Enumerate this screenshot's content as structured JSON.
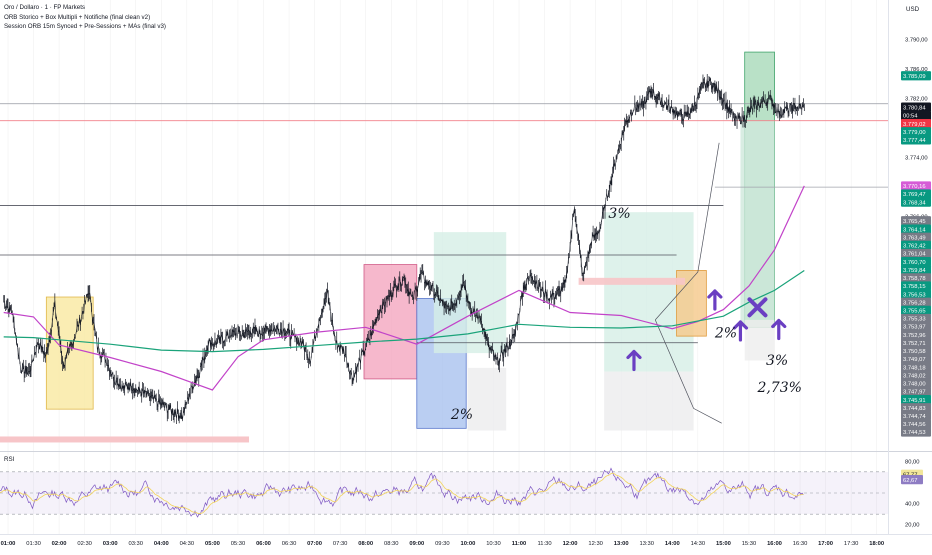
{
  "header": {
    "symbol_title": "Oro / Dollaro · 1 · FP Markets",
    "indicator_1": "ORB Storico + Box Multipli + Notifiche (final clean v2)",
    "indicator_2": "Session ORB 15m Synced + Pre-Sessions + MAs (final v3)",
    "currency": "USD"
  },
  "rsi": {
    "label": "RSI",
    "scale": [
      "80,00",
      "40,00",
      "20,00"
    ],
    "levels": [
      70,
      50,
      30
    ],
    "tags": [
      {
        "text": "67,77",
        "color": "#f2e69a",
        "fg": "#131722",
        "value": 67.77
      },
      {
        "text": "62,67",
        "color": "#8e7cc3",
        "fg": "#ffffff",
        "value": 62.67
      }
    ]
  },
  "price_scale": [
    "3.790,00",
    "3.786,00",
    "3.782,00",
    "3.774,00",
    "3.766,00"
  ],
  "price_tags": [
    {
      "text": "3.785,09",
      "color": "#089981",
      "fg": "#ffffff",
      "price": 3785.09
    },
    {
      "text": "3.780,84",
      "color": "#131722",
      "fg": "#ffffff",
      "price": 3780.84
    },
    {
      "text": "00:54",
      "color": "#131722",
      "fg": "#ffffff",
      "price": 3779.7
    },
    {
      "text": "3.779,02",
      "color": "#f23645",
      "fg": "#ffffff",
      "price": 3778.6
    },
    {
      "text": "3.779,00",
      "color": "#089981",
      "fg": "#ffffff",
      "price": 3777.5
    },
    {
      "text": "3.777,44",
      "color": "#089981",
      "fg": "#ffffff",
      "price": 3776.4
    },
    {
      "text": "3.770,16",
      "color": "#d65cd6",
      "fg": "#ffffff",
      "price": 3770.16
    },
    {
      "text": "3.769,47",
      "color": "#089981",
      "fg": "#ffffff",
      "price": 3769.06
    },
    {
      "text": "3.768,34",
      "color": "#089981",
      "fg": "#ffffff",
      "price": 3767.96
    },
    {
      "text": "3.765,45",
      "color": "#787b86",
      "fg": "#ffffff",
      "price": 3765.45
    },
    {
      "text": "3.764,14",
      "color": "#089981",
      "fg": "#ffffff",
      "price": 3764.3
    },
    {
      "text": "3.763,49",
      "color": "#787b86",
      "fg": "#ffffff",
      "price": 3763.2
    },
    {
      "text": "3.762,42",
      "color": "#089981",
      "fg": "#ffffff",
      "price": 3762.1
    },
    {
      "text": "3.761,04",
      "color": "#787b86",
      "fg": "#ffffff",
      "price": 3761.0
    },
    {
      "text": "3.760,70",
      "color": "#089981",
      "fg": "#ffffff",
      "price": 3759.9
    },
    {
      "text": "3.759,84",
      "color": "#089981",
      "fg": "#ffffff",
      "price": 3758.8
    },
    {
      "text": "3.758,78",
      "color": "#787b86",
      "fg": "#ffffff",
      "price": 3757.7
    },
    {
      "text": "3.758,15",
      "color": "#089981",
      "fg": "#ffffff",
      "price": 3756.6
    },
    {
      "text": "3.756,53",
      "color": "#089981",
      "fg": "#ffffff",
      "price": 3755.5
    },
    {
      "text": "3.756,28",
      "color": "#787b86",
      "fg": "#ffffff",
      "price": 3754.4
    },
    {
      "text": "3.755,65",
      "color": "#089981",
      "fg": "#ffffff",
      "price": 3753.3
    },
    {
      "text": "3.755,33",
      "color": "#787b86",
      "fg": "#ffffff",
      "price": 3752.2
    },
    {
      "text": "3.753,97",
      "color": "#787b86",
      "fg": "#ffffff",
      "price": 3751.1
    },
    {
      "text": "3.752,96",
      "color": "#787b86",
      "fg": "#ffffff",
      "price": 3750.0
    },
    {
      "text": "3.752,71",
      "color": "#787b86",
      "fg": "#ffffff",
      "price": 3748.9
    },
    {
      "text": "3.750,58",
      "color": "#787b86",
      "fg": "#ffffff",
      "price": 3747.8
    },
    {
      "text": "3.749,07",
      "color": "#787b86",
      "fg": "#ffffff",
      "price": 3746.7
    },
    {
      "text": "3.748,18",
      "color": "#787b86",
      "fg": "#ffffff",
      "price": 3745.6
    },
    {
      "text": "3.748,02",
      "color": "#787b86",
      "fg": "#ffffff",
      "price": 3744.5
    },
    {
      "text": "3.748,00",
      "color": "#787b86",
      "fg": "#ffffff",
      "price": 3743.4
    },
    {
      "text": "3.747,97",
      "color": "#787b86",
      "fg": "#ffffff",
      "price": 3742.3
    },
    {
      "text": "3.745,91",
      "color": "#089981",
      "fg": "#ffffff",
      "price": 3741.2
    },
    {
      "text": "3.744,83",
      "color": "#787b86",
      "fg": "#ffffff",
      "price": 3740.1
    },
    {
      "text": "3.744,74",
      "color": "#787b86",
      "fg": "#ffffff",
      "price": 3739.0
    },
    {
      "text": "3.744,56",
      "color": "#787b86",
      "fg": "#ffffff",
      "price": 3737.9
    },
    {
      "text": "3.744,53",
      "color": "#787b86",
      "fg": "#ffffff",
      "price": 3736.8
    }
  ],
  "time_axis": [
    "01:00",
    "01:30",
    "02:00",
    "02:30",
    "03:00",
    "03:30",
    "04:00",
    "04:30",
    "05:00",
    "05:30",
    "06:00",
    "06:30",
    "07:00",
    "07:30",
    "08:00",
    "08:30",
    "09:00",
    "09:30",
    "10:00",
    "10:30",
    "11:00",
    "11:30",
    "12:00",
    "12:30",
    "13:00",
    "13:30",
    "14:00",
    "14:30",
    "15:00",
    "15:30",
    "16:00",
    "16:30",
    "17:00",
    "17:30",
    "18:00"
  ],
  "time_axis_bold": [
    "01:00",
    "02:00",
    "03:00",
    "04:00",
    "05:00",
    "06:00",
    "07:00",
    "08:00",
    "09:00",
    "10:00",
    "11:00",
    "12:00",
    "13:00",
    "14:00",
    "15:00",
    "16:00",
    "17:00",
    "18:00"
  ],
  "annotations": [
    {
      "text": "3%",
      "x": "12:45",
      "y": 3765.8
    },
    {
      "text": "2%",
      "x": "09:40",
      "y": 3738.6
    },
    {
      "text": "2%",
      "x": "14:50",
      "y": 3749.6
    },
    {
      "text": "3%",
      "x": "15:50",
      "y": 3745.9
    },
    {
      "text": "2,73%",
      "x": "15:40",
      "y": 3742.2
    }
  ],
  "markers": [
    {
      "type": "arrow-up",
      "x": "13:15",
      "y": 3746.5
    },
    {
      "type": "arrow-up",
      "x": "14:50",
      "y": 3754.7
    },
    {
      "type": "arrow-up",
      "x": "15:20",
      "y": 3750.5
    },
    {
      "type": "arrow-up",
      "x": "16:05",
      "y": 3750.7
    },
    {
      "type": "cross",
      "x": "15:40",
      "y": 3753.7
    }
  ],
  "colors": {
    "candles": "#131722",
    "ma_fast": "#c243c9",
    "ma_slow": "#1aa37a",
    "marker": "#6a3fc2",
    "grid": "#eeeeee"
  },
  "chart_data": {
    "type": "line",
    "title": "Oro / Dollaro · 1 · FP Markets",
    "xlabel": "",
    "ylabel": "USD",
    "ylim": [
      3734.5,
      3791.7
    ],
    "x_range": [
      "00:52",
      "18:05"
    ],
    "price_series": {
      "x": [
        "00:55",
        "01:05",
        "01:15",
        "01:25",
        "01:35",
        "01:45",
        "01:55",
        "02:05",
        "02:15",
        "02:25",
        "02:35",
        "02:45",
        "02:55",
        "03:05",
        "03:15",
        "03:25",
        "03:35",
        "03:45",
        "03:55",
        "04:05",
        "04:15",
        "04:25",
        "04:35",
        "04:45",
        "04:55",
        "05:05",
        "05:15",
        "05:25",
        "05:35",
        "05:45",
        "05:55",
        "06:05",
        "06:15",
        "06:25",
        "06:35",
        "06:45",
        "06:55",
        "07:05",
        "07:15",
        "07:25",
        "07:35",
        "07:45",
        "07:55",
        "08:05",
        "08:15",
        "08:25",
        "08:35",
        "08:45",
        "08:55",
        "09:05",
        "09:15",
        "09:25",
        "09:35",
        "09:45",
        "09:55",
        "10:05",
        "10:15",
        "10:25",
        "10:35",
        "10:45",
        "10:55",
        "11:05",
        "11:15",
        "11:25",
        "11:35",
        "11:45",
        "11:55",
        "12:05",
        "12:15",
        "12:25",
        "12:35",
        "12:45",
        "12:55",
        "13:05",
        "13:15",
        "13:25",
        "13:35",
        "13:45",
        "13:55",
        "14:05",
        "14:15",
        "14:25",
        "14:35",
        "14:45",
        "14:55",
        "15:05",
        "15:15",
        "15:25",
        "15:35",
        "15:45",
        "15:55",
        "16:05",
        "16:15",
        "16:25",
        "16:35"
      ],
      "values": [
        3754.5,
        3753.0,
        3745.5,
        3744.8,
        3749.0,
        3747.0,
        3754.0,
        3745.8,
        3748.8,
        3752.0,
        3756.0,
        3748.2,
        3746.7,
        3744.0,
        3742.8,
        3743.1,
        3742.3,
        3741.6,
        3740.9,
        3740.1,
        3739.6,
        3738.9,
        3742.6,
        3745.0,
        3748.8,
        3749.0,
        3749.6,
        3750.2,
        3750.0,
        3750.6,
        3750.3,
        3750.7,
        3750.9,
        3750.6,
        3749.6,
        3748.9,
        3746.7,
        3752.1,
        3755.6,
        3748.9,
        3747.7,
        3744.0,
        3747.0,
        3749.6,
        3753.0,
        3754.7,
        3756.6,
        3757.7,
        3754.7,
        3758.1,
        3756.6,
        3755.2,
        3753.4,
        3754.3,
        3757.3,
        3753.0,
        3752.2,
        3748.2,
        3746.3,
        3748.0,
        3749.9,
        3756.4,
        3758.1,
        3756.3,
        3755.0,
        3755.5,
        3756.9,
        3767.4,
        3757.8,
        3762.7,
        3764.3,
        3769.5,
        3774.3,
        3778.7,
        3780.84,
        3781.0,
        3783.0,
        3782.0,
        3780.84,
        3780.0,
        3779.5,
        3780.8,
        3783.6,
        3784.2,
        3782.8,
        3780.8,
        3779.0,
        3779.5,
        3780.84,
        3781.5,
        3782.0,
        3780.0,
        3780.5,
        3780.84,
        3780.84
      ]
    },
    "moving_averages": [
      {
        "color": "#c243c9",
        "x": [
          "00:55",
          "01:30",
          "02:00",
          "03:00",
          "04:00",
          "05:00",
          "05:30",
          "06:00",
          "07:00",
          "08:00",
          "09:00",
          "10:00",
          "11:00",
          "12:00",
          "13:00",
          "14:00",
          "14:30",
          "15:00",
          "15:30",
          "16:00",
          "16:35"
        ],
        "values": [
          3753.0,
          3752.4,
          3748.6,
          3746.9,
          3745.0,
          3742.5,
          3747.0,
          3749.3,
          3750.3,
          3751.0,
          3748.7,
          3752.5,
          3756.0,
          3753.0,
          3752.6,
          3750.8,
          3751.8,
          3753.4,
          3756.6,
          3761.5,
          3770.16
        ]
      },
      {
        "color": "#1aa37a",
        "x": [
          "00:55",
          "01:30",
          "02:00",
          "03:00",
          "04:00",
          "05:00",
          "06:00",
          "07:00",
          "08:00",
          "09:00",
          "10:00",
          "11:00",
          "12:00",
          "13:00",
          "14:00",
          "15:00",
          "15:30",
          "16:00",
          "16:35"
        ],
        "values": [
          3749.7,
          3749.6,
          3749.3,
          3748.7,
          3747.9,
          3747.7,
          3748.0,
          3748.5,
          3749.0,
          3749.4,
          3750.1,
          3751.4,
          3751.0,
          3750.9,
          3751.2,
          3752.5,
          3754.4,
          3756.0,
          3758.7
        ]
      }
    ],
    "annotations": [
      "3%",
      "2%",
      "2%",
      "3%",
      "2,73%"
    ]
  }
}
